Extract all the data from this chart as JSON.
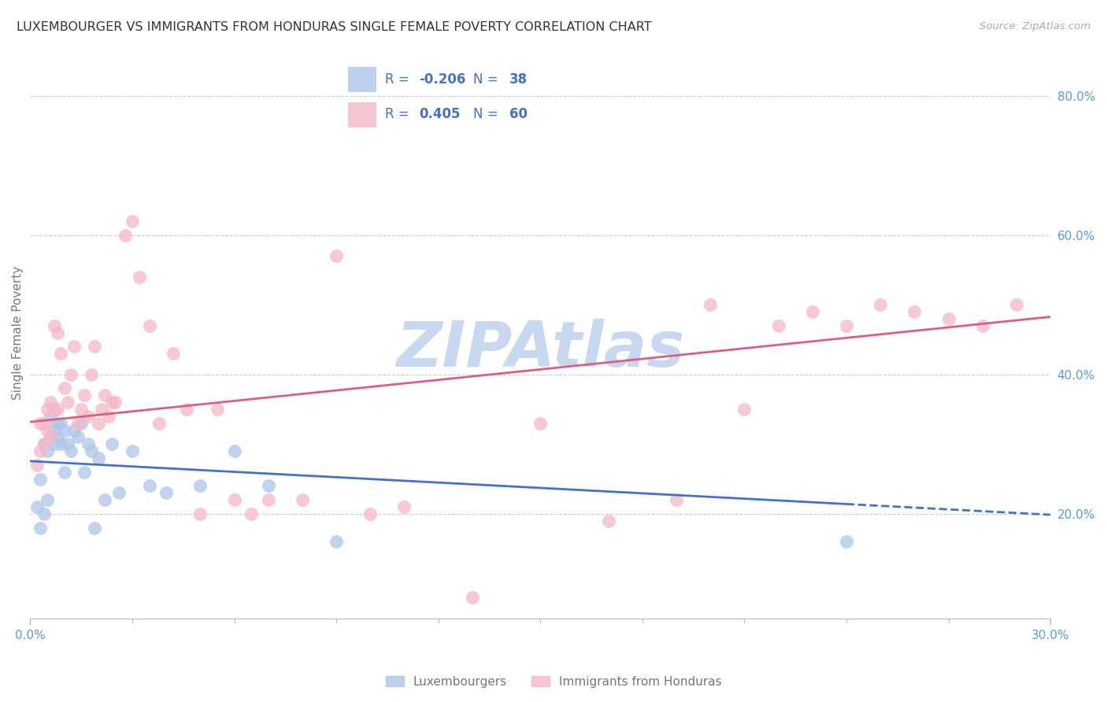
{
  "title": "LUXEMBOURGER VS IMMIGRANTS FROM HONDURAS SINGLE FEMALE POVERTY CORRELATION CHART",
  "source": "Source: ZipAtlas.com",
  "ylabel": "Single Female Poverty",
  "xlim": [
    0.0,
    0.3
  ],
  "ylim": [
    0.05,
    0.87
  ],
  "blue_scatter_color": "#aec6e8",
  "pink_scatter_color": "#f4b8c8",
  "blue_line_color": "#4472c4",
  "pink_line_color": "#d96080",
  "blue_R": -0.206,
  "blue_N": 38,
  "pink_R": 0.405,
  "pink_N": 60,
  "right_yticks": [
    0.2,
    0.4,
    0.6,
    0.8
  ],
  "watermark": "ZIPAtlas",
  "watermark_color": "#c8d8f0",
  "grid_color": "#cccccc",
  "axis_label_color": "#777777",
  "right_tick_color": "#5b9bd5",
  "title_color": "#333333",
  "source_color": "#aaaaaa",
  "legend_text_color": "#4472c4",
  "blue_scatter_x": [
    0.002,
    0.003,
    0.003,
    0.004,
    0.004,
    0.005,
    0.005,
    0.006,
    0.006,
    0.007,
    0.007,
    0.008,
    0.008,
    0.009,
    0.009,
    0.01,
    0.01,
    0.011,
    0.012,
    0.013,
    0.014,
    0.015,
    0.016,
    0.017,
    0.018,
    0.019,
    0.02,
    0.022,
    0.024,
    0.026,
    0.03,
    0.035,
    0.04,
    0.05,
    0.06,
    0.07,
    0.09,
    0.24
  ],
  "blue_scatter_y": [
    0.21,
    0.18,
    0.25,
    0.2,
    0.3,
    0.29,
    0.22,
    0.31,
    0.34,
    0.32,
    0.3,
    0.31,
    0.33,
    0.3,
    0.33,
    0.32,
    0.26,
    0.3,
    0.29,
    0.32,
    0.31,
    0.33,
    0.26,
    0.3,
    0.29,
    0.18,
    0.28,
    0.22,
    0.3,
    0.23,
    0.29,
    0.24,
    0.23,
    0.24,
    0.29,
    0.24,
    0.16,
    0.16
  ],
  "pink_scatter_x": [
    0.002,
    0.003,
    0.003,
    0.004,
    0.004,
    0.005,
    0.005,
    0.006,
    0.006,
    0.007,
    0.007,
    0.008,
    0.008,
    0.009,
    0.01,
    0.011,
    0.012,
    0.013,
    0.014,
    0.015,
    0.016,
    0.017,
    0.018,
    0.019,
    0.02,
    0.021,
    0.022,
    0.023,
    0.024,
    0.025,
    0.028,
    0.03,
    0.032,
    0.035,
    0.038,
    0.042,
    0.046,
    0.05,
    0.055,
    0.06,
    0.065,
    0.07,
    0.08,
    0.09,
    0.1,
    0.11,
    0.13,
    0.15,
    0.17,
    0.19,
    0.2,
    0.21,
    0.22,
    0.23,
    0.24,
    0.25,
    0.26,
    0.27,
    0.28,
    0.29
  ],
  "pink_scatter_y": [
    0.27,
    0.29,
    0.33,
    0.3,
    0.33,
    0.32,
    0.35,
    0.31,
    0.36,
    0.35,
    0.47,
    0.46,
    0.35,
    0.43,
    0.38,
    0.36,
    0.4,
    0.44,
    0.33,
    0.35,
    0.37,
    0.34,
    0.4,
    0.44,
    0.33,
    0.35,
    0.37,
    0.34,
    0.36,
    0.36,
    0.6,
    0.62,
    0.54,
    0.47,
    0.33,
    0.43,
    0.35,
    0.2,
    0.35,
    0.22,
    0.2,
    0.22,
    0.22,
    0.57,
    0.2,
    0.21,
    0.08,
    0.33,
    0.19,
    0.22,
    0.5,
    0.35,
    0.47,
    0.49,
    0.47,
    0.5,
    0.49,
    0.48,
    0.47,
    0.5
  ]
}
